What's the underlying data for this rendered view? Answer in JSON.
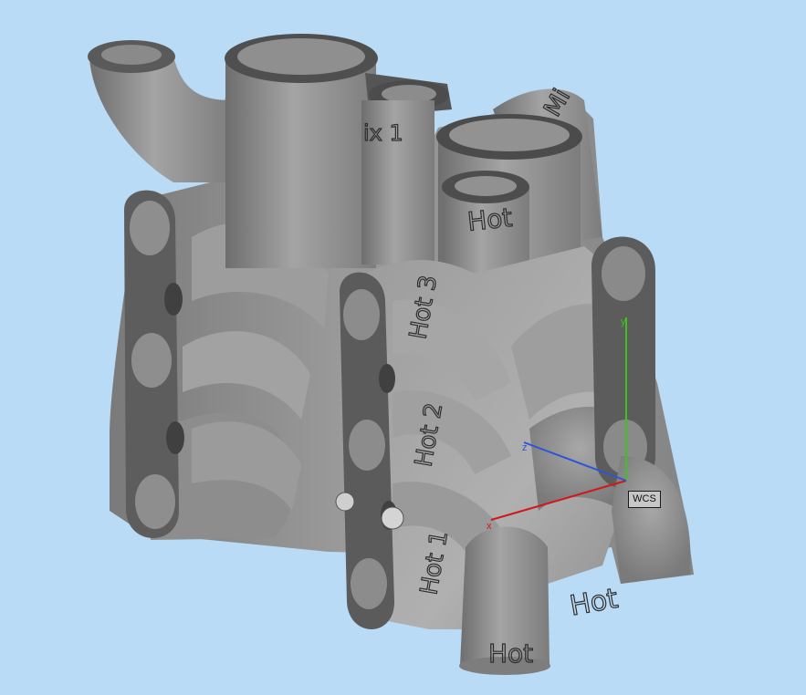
{
  "viewport": {
    "background_color": "#b9dbf5",
    "model_color": "#8c8c8c"
  },
  "model": {
    "engraved_labels": {
      "mix": "ix 1",
      "top_right": "Mi",
      "hot_top": "Hot",
      "hot3": "Hot 3",
      "hot2": "Hot 2",
      "hot1": "Hot 1",
      "hot_bottom": "Hot",
      "hot_right": "Hot"
    }
  },
  "axes": {
    "x_label": "x",
    "y_label": "y",
    "z_label": "z",
    "x_color": "#d01818",
    "y_color": "#3fc21f",
    "z_color": "#2c55d8",
    "origin_label": "WCS"
  }
}
